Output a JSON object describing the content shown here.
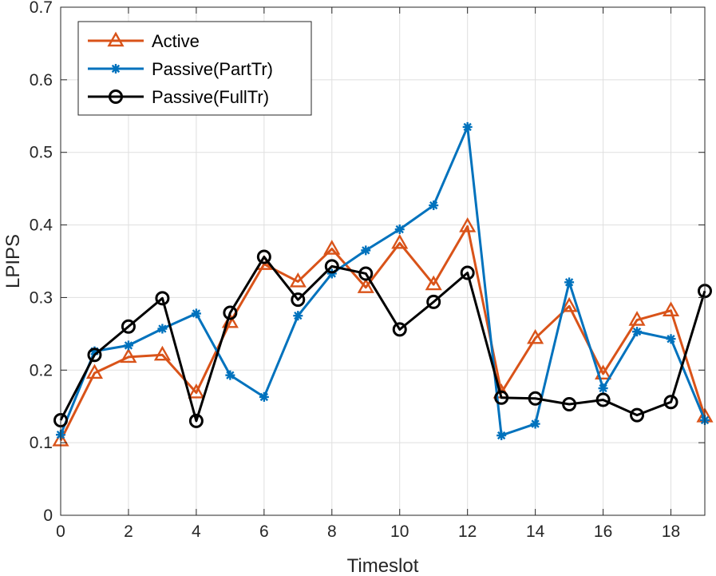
{
  "chart_data": {
    "type": "line",
    "title": "",
    "xlabel": "Timeslot",
    "ylabel": "LPIPS",
    "xlim": [
      0,
      19
    ],
    "ylim": [
      0,
      0.7
    ],
    "xticks": [
      0,
      2,
      4,
      6,
      8,
      10,
      12,
      14,
      16,
      18
    ],
    "yticks": [
      0,
      0.1,
      0.2,
      0.3,
      0.4,
      0.5,
      0.6,
      0.7
    ],
    "xtick_labels": [
      "0",
      "2",
      "4",
      "6",
      "8",
      "10",
      "12",
      "14",
      "16",
      "18"
    ],
    "ytick_labels": [
      "0",
      "0.1",
      "0.2",
      "0.3",
      "0.4",
      "0.5",
      "0.6",
      "0.7"
    ],
    "grid": true,
    "legend_position": "top-left",
    "x": [
      0,
      1,
      2,
      3,
      4,
      5,
      6,
      7,
      8,
      9,
      10,
      11,
      12,
      13,
      14,
      15,
      16,
      17,
      18,
      19
    ],
    "series": [
      {
        "name": "Active",
        "color": "#D95319",
        "marker": "triangle",
        "values": [
          0.103,
          0.196,
          0.218,
          0.221,
          0.169,
          0.266,
          0.346,
          0.322,
          0.367,
          0.314,
          0.375,
          0.318,
          0.398,
          0.169,
          0.244,
          0.288,
          0.195,
          0.269,
          0.282,
          0.136
        ]
      },
      {
        "name": "Passive(PartTr)",
        "color": "#0072BD",
        "marker": "asterisk",
        "values": [
          0.111,
          0.226,
          0.234,
          0.257,
          0.278,
          0.193,
          0.163,
          0.275,
          0.333,
          0.365,
          0.394,
          0.427,
          0.535,
          0.11,
          0.126,
          0.321,
          0.175,
          0.253,
          0.243,
          0.131
        ]
      },
      {
        "name": "Passive(FullTr)",
        "color": "#000000",
        "marker": "circle",
        "values": [
          0.131,
          0.221,
          0.26,
          0.299,
          0.13,
          0.279,
          0.356,
          0.297,
          0.343,
          0.333,
          0.256,
          0.294,
          0.334,
          0.162,
          0.161,
          0.153,
          0.159,
          0.138,
          0.156,
          0.309
        ]
      }
    ]
  }
}
